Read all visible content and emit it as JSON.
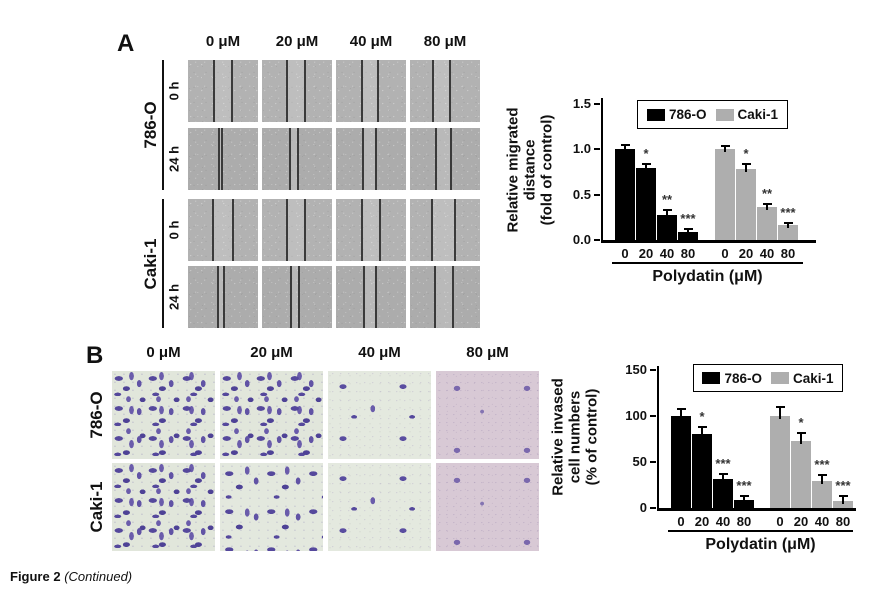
{
  "figure": {
    "caption_bold": "Figure 2",
    "caption_italic": "(Continued)"
  },
  "colors": {
    "series1": "#000000",
    "series2": "#aeaeae",
    "stain_purple": "#55489c",
    "assay_bg_green": "#e3e8de",
    "assay_bg_pink": "#d8c9d5"
  },
  "panel_a": {
    "label": "A",
    "col_headers": [
      "0 μM",
      "20 μM",
      "40 μM",
      "80 μM"
    ],
    "cell_lines": [
      "786-O",
      "Caki-1"
    ],
    "time_labels": [
      "0 h",
      "24 h"
    ],
    "wound_rows": [
      {
        "cell_line": "786-O",
        "time": "0 h",
        "wound_lines_pct": [
          [
            37,
            63
          ],
          [
            35,
            62
          ],
          [
            37,
            60
          ],
          [
            33,
            57
          ]
        ]
      },
      {
        "cell_line": "786-O",
        "time": "24 h",
        "wound_lines_pct": [
          [
            44,
            49
          ],
          [
            40,
            52
          ],
          [
            38,
            57
          ],
          [
            37,
            58
          ]
        ]
      },
      {
        "cell_line": "Caki-1",
        "time": "0 h",
        "wound_lines_pct": [
          [
            36,
            64
          ],
          [
            35,
            62
          ],
          [
            37,
            63
          ],
          [
            32,
            64
          ]
        ]
      },
      {
        "cell_line": "Caki-1",
        "time": "24 h",
        "wound_lines_pct": [
          [
            43,
            52
          ],
          [
            42,
            53
          ],
          [
            40,
            57
          ],
          [
            35,
            62
          ]
        ]
      }
    ]
  },
  "panel_b": {
    "label": "B",
    "col_headers": [
      "0 μM",
      "20 μM",
      "40 μM",
      "80 μM"
    ],
    "row_labels": [
      "786-O",
      "Caki-1"
    ],
    "cell_density": [
      [
        "dense",
        "dense",
        "sparse",
        "very-sparse"
      ],
      [
        "dense",
        "medium",
        "sparse",
        "very-sparse"
      ]
    ]
  },
  "chart_data": [
    {
      "id": "chart-migration",
      "type": "bar",
      "title": "",
      "categories": [
        "0",
        "20",
        "40",
        "80"
      ],
      "series": [
        {
          "name": "786-O",
          "color": "#000000",
          "values": [
            1.0,
            0.79,
            0.27,
            0.09
          ],
          "errors": [
            0.04,
            0.05,
            0.06,
            0.03
          ],
          "sig": [
            "",
            "*",
            "**",
            "***"
          ]
        },
        {
          "name": "Caki-1",
          "color": "#aeaeae",
          "values": [
            1.0,
            0.78,
            0.36,
            0.16
          ],
          "errors": [
            0.03,
            0.05,
            0.04,
            0.03
          ],
          "sig": [
            "",
            "*",
            "**",
            "***"
          ]
        }
      ],
      "ylabel_lines": [
        "Relative migrated",
        "distance",
        "(fold of control)"
      ],
      "xlabel": "Polydatin (μM)",
      "ylim": [
        0,
        1.5
      ],
      "yticks": [
        "0.0",
        "0.5",
        "1.0",
        "1.5"
      ],
      "legend": [
        "786-O",
        "Caki-1"
      ],
      "legend_position": "top",
      "grid": false
    },
    {
      "id": "chart-invasion",
      "type": "bar",
      "title": "",
      "categories": [
        "0",
        "20",
        "40",
        "80"
      ],
      "series": [
        {
          "name": "786-O",
          "color": "#000000",
          "values": [
            100,
            80,
            32,
            9
          ],
          "errors": [
            8,
            8,
            5,
            4
          ],
          "sig": [
            "",
            "*",
            "***",
            "***"
          ]
        },
        {
          "name": "Caki-1",
          "color": "#aeaeae",
          "values": [
            100,
            73,
            29,
            8
          ],
          "errors": [
            10,
            8,
            7,
            5
          ],
          "sig": [
            "",
            "*",
            "***",
            "***"
          ]
        }
      ],
      "ylabel_lines": [
        "Relative invased",
        "cell numbers",
        "(% of control)"
      ],
      "xlabel": "Polydatin (μM)",
      "ylim": [
        0,
        150
      ],
      "yticks": [
        "0",
        "50",
        "100",
        "150"
      ],
      "legend": [
        "786-O",
        "Caki-1"
      ],
      "legend_position": "top",
      "grid": false
    }
  ]
}
